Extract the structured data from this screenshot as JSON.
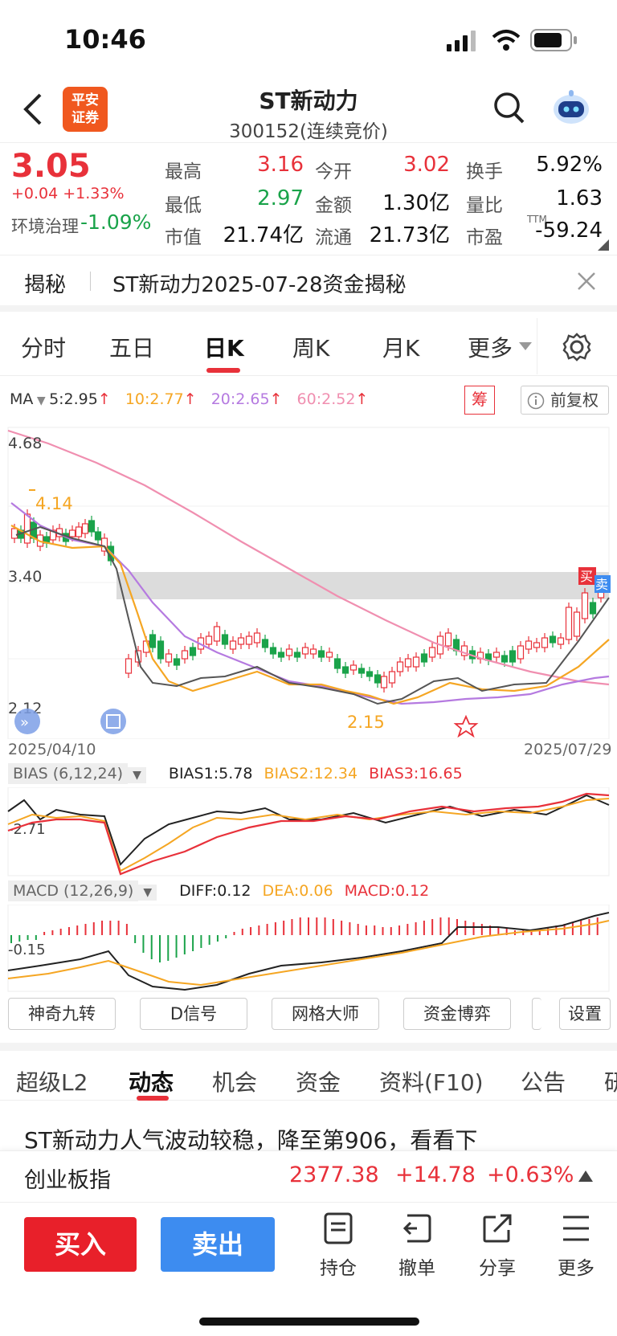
{
  "status_bar": {
    "time": "10:46"
  },
  "header": {
    "logo_line1": "平安",
    "logo_line2": "证券",
    "title": "ST新动力",
    "subtitle": "300152(连续竞价)"
  },
  "quote": {
    "price": "3.05",
    "change": "+0.04  +1.33%",
    "sector": "环境治理",
    "sector_change": "-1.09%",
    "rows": [
      [
        {
          "label": "最高",
          "value": "3.16",
          "color": "red"
        },
        {
          "label": "今开",
          "value": "3.02",
          "color": "red"
        },
        {
          "label": "换手",
          "value": "5.92%",
          "color": "black"
        }
      ],
      [
        {
          "label": "最低",
          "value": "2.97",
          "color": "green"
        },
        {
          "label": "金额",
          "value": "1.30亿",
          "color": "black"
        },
        {
          "label": "量比",
          "value": "1.63",
          "color": "black"
        }
      ],
      [
        {
          "label": "市值",
          "value": "21.74亿",
          "color": "black"
        },
        {
          "label": "流通",
          "value": "21.73亿",
          "color": "black"
        },
        {
          "label": "市盈",
          "value": "-59.24",
          "color": "black"
        }
      ]
    ],
    "pe_suffix": "TTM"
  },
  "reveal": {
    "label": "揭秘",
    "text": "ST新动力2025-07-28资金揭秘"
  },
  "kline_tabs": [
    "分时",
    "五日",
    "日K",
    "周K",
    "月K",
    "更多"
  ],
  "active_tab": "日K",
  "ma_legend": {
    "label": "MA",
    "ma5": "5:2.95",
    "ma10": "10:2.77",
    "ma20": "20:2.65",
    "ma60": "60:2.52",
    "chip_btn": "筹",
    "adjust_btn": "前复权"
  },
  "chart_labels": {
    "top_price": "4.68",
    "mid_price": "3.40",
    "low_price": "2.12",
    "high_mark": "4.14",
    "low_mark": "2.15",
    "date_start": "2025/04/10",
    "date_end": "2025/07/29",
    "buy_mark": "买",
    "sell_mark": "卖"
  },
  "bias": {
    "label": "BIAS (6,12,24)",
    "b1": "BIAS1:5.78",
    "b2": "BIAS2:12.34",
    "b3": "BIAS3:16.65",
    "axis": "-2.71"
  },
  "macd": {
    "label": "MACD (12,26,9)",
    "diff": "DIFF:0.12",
    "dea": "DEA:0.06",
    "macd": "MACD:0.12",
    "axis": "-0.15"
  },
  "tools": [
    "神奇九转",
    "D信号",
    "网格大师",
    "资金博弈",
    "设置"
  ],
  "lower_tabs": [
    "超级L2",
    "动态",
    "机会",
    "资金",
    "资料(F10)",
    "公告",
    "研"
  ],
  "active_lower_tab": "动态",
  "news_headline": "ST新动力人气波动较稳，降至第906，看看下",
  "index_bar": {
    "name": "创业板指",
    "value": "2377.38",
    "change": "+14.78",
    "pct": "+0.63%"
  },
  "bottom": {
    "buy": "买入",
    "sell": "卖出",
    "actions": [
      "持仓",
      "撤单",
      "分享",
      "更多"
    ]
  },
  "chart_data": {
    "type": "candlestick",
    "x_range": [
      "2025/04/10",
      "2025/07/29"
    ],
    "y_range": [
      2.12,
      4.68
    ],
    "annotations": {
      "high": 4.14,
      "low": 2.15,
      "mid_level": 3.4
    },
    "ma": {
      "MA5": 2.95,
      "MA10": 2.77,
      "MA20": 2.65,
      "MA60": 2.52
    },
    "bias": {
      "BIAS1": 5.78,
      "BIAS2": 12.34,
      "BIAS3": 16.65
    },
    "macd": {
      "DIFF": 0.12,
      "DEA": 0.06,
      "MACD": 0.12
    }
  }
}
